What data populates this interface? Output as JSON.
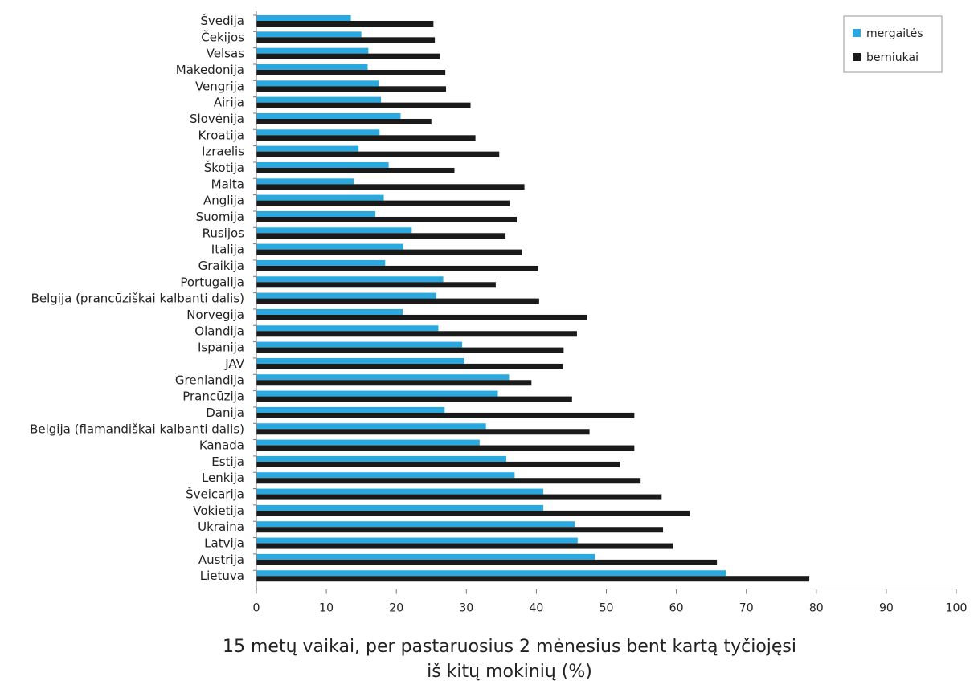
{
  "chart_data": {
    "type": "bar",
    "orientation": "horizontal",
    "categories": [
      "Švedija",
      "Čekijos",
      "Velsas",
      "Makedonija",
      "Vengrija",
      "Airija",
      "Slovėnija",
      "Kroatija",
      "Izraelis",
      "Škotija",
      "Malta",
      "Anglija",
      "Suomija",
      "Rusijos",
      "Italija",
      "Graikija",
      "Portugalija",
      "Belgija (prancūziškai kalbanti dalis)",
      "Norvegija",
      "Olandija",
      "Ispanija",
      "JAV",
      "Grenlandija",
      "Prancūzija",
      "Danija",
      "Belgija (flamandiškai kalbanti dalis)",
      "Kanada",
      "Estija",
      "Lenkija",
      "Šveicarija",
      "Vokietija",
      "Ukraina",
      "Latvija",
      "Austrija",
      "Lietuva"
    ],
    "series": [
      {
        "name": "mergaitės",
        "color": "#29a9df",
        "values": [
          13.5,
          15,
          16,
          15.9,
          17.5,
          17.8,
          20.6,
          17.6,
          14.6,
          18.9,
          13.9,
          18.2,
          17,
          22.2,
          21,
          18.4,
          26.7,
          25.7,
          20.9,
          26,
          29.4,
          29.7,
          36.1,
          34.5,
          26.9,
          32.8,
          31.9,
          35.7,
          36.9,
          41,
          41,
          45.5,
          45.9,
          48.4,
          67.1
        ]
      },
      {
        "name": "berniukai",
        "color": "#1a1a1a",
        "values": [
          25.3,
          25.5,
          26.2,
          27,
          27.1,
          30.6,
          25,
          31.3,
          34.7,
          28.3,
          38.3,
          36.2,
          37.2,
          35.6,
          37.9,
          40.3,
          34.2,
          40.4,
          47.3,
          45.8,
          43.9,
          43.8,
          39.3,
          45.1,
          54,
          47.6,
          54,
          51.9,
          54.9,
          57.9,
          61.9,
          58.1,
          59.5,
          65.8,
          79
        ]
      }
    ],
    "xlabel": [
      "15 metų vaikai, per pastaruosius 2 mėnesius bent kartą tyčiojęsi",
      "iš kitų mokinių (%)"
    ],
    "xlim": [
      0,
      100
    ],
    "xticks": [
      0,
      10,
      20,
      30,
      40,
      50,
      60,
      70,
      80,
      90,
      100
    ],
    "grid": false,
    "legend_position": "top-right"
  }
}
